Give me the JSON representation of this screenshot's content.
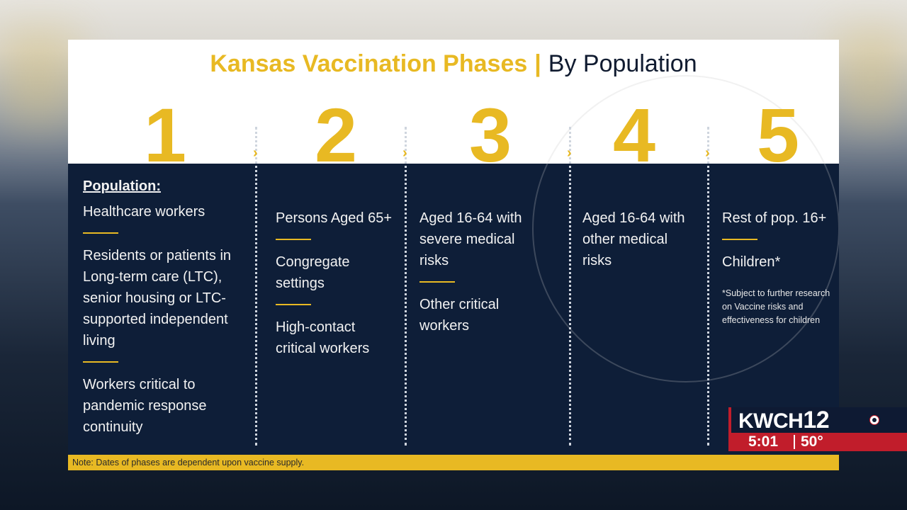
{
  "slide": {
    "title_part1": "Kansas Vaccination Phases",
    "title_separator": "|",
    "title_part2": "By Population",
    "note": "Note: Dates of phases are dependent upon vaccine supply."
  },
  "phases": [
    {
      "number": "1",
      "heading": "Population:",
      "items": [
        "Healthcare workers",
        "Residents or patients in Long-term care (LTC), senior housing or LTC-supported independent living",
        "Workers critical to pandemic response continuity"
      ]
    },
    {
      "number": "2",
      "items": [
        "Persons Aged 65+",
        "Congregate settings",
        "High-contact critical workers"
      ]
    },
    {
      "number": "3",
      "items": [
        "Aged 16-64 with severe medical risks",
        "Other critical workers"
      ]
    },
    {
      "number": "4",
      "items": [
        "Aged 16-64 with other medical risks"
      ]
    },
    {
      "number": "5",
      "items": [
        "Rest of pop. 16+",
        "Children*"
      ],
      "footnote": "*Subject to further research on Vaccine risks and effectiveness for children"
    }
  ],
  "chevron": "›",
  "broadcast": {
    "station_letters": "KWCH",
    "station_number": "12",
    "time": "5:01",
    "temperature": "50°"
  },
  "colors": {
    "accent_gold": "#e8b923",
    "slide_navy": "#0e1e38",
    "station_red": "#c11d2b"
  }
}
